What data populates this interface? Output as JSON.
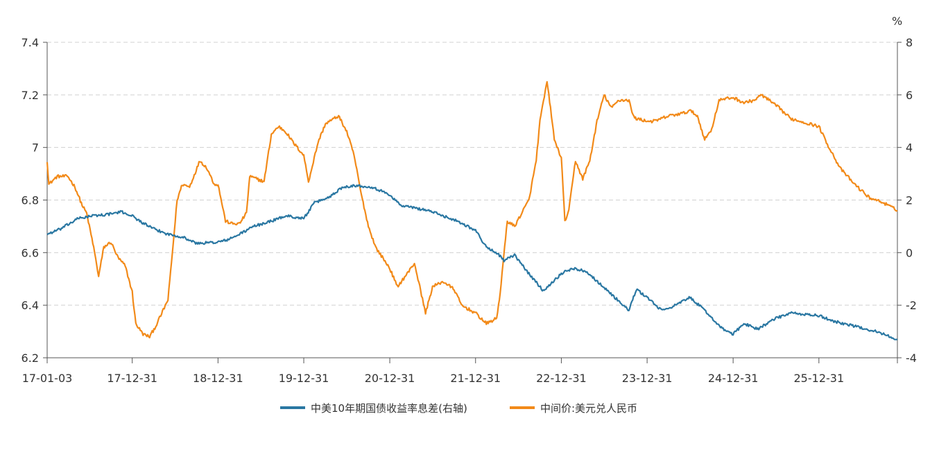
{
  "chart_data": {
    "type": "line",
    "title": "",
    "grid": true,
    "legend_position": "bottom-center",
    "x_axis": {
      "ticks": [
        "17-01-03",
        "17-12-31",
        "18-12-31",
        "19-12-31",
        "20-12-31",
        "21-12-31",
        "22-12-31",
        "23-12-31",
        "24-12-31",
        "25-12-31"
      ],
      "range": [
        "2017-01-03",
        "2026-11-30"
      ]
    },
    "y_left": {
      "ticks": [
        "6.2",
        "6.4",
        "6.6",
        "6.8",
        "7",
        "7.2",
        "7.4"
      ],
      "range": [
        6.2,
        7.4
      ]
    },
    "y_right": {
      "unit": "%",
      "ticks": [
        "-4",
        "-2",
        "0",
        "2",
        "4",
        "6",
        "8"
      ],
      "range": [
        -4,
        8
      ]
    },
    "series": [
      {
        "name": "中美10年期国债收益率息差(右轴)",
        "axis": "right",
        "color": "#2a77a2",
        "points": [
          [
            "2017-01-03",
            0.7
          ],
          [
            "2017-03-01",
            0.9
          ],
          [
            "2017-05-15",
            1.3
          ],
          [
            "2017-07-15",
            1.4
          ],
          [
            "2017-09-15",
            1.45
          ],
          [
            "2017-11-15",
            1.55
          ],
          [
            "2017-12-31",
            1.4
          ],
          [
            "2018-02-01",
            1.2
          ],
          [
            "2018-04-01",
            0.9
          ],
          [
            "2018-06-01",
            0.7
          ],
          [
            "2018-08-01",
            0.6
          ],
          [
            "2018-10-01",
            0.35
          ],
          [
            "2018-12-31",
            0.4
          ],
          [
            "2019-02-15",
            0.5
          ],
          [
            "2019-04-01",
            0.7
          ],
          [
            "2019-06-01",
            1.0
          ],
          [
            "2019-08-15",
            1.2
          ],
          [
            "2019-10-15",
            1.4
          ],
          [
            "2019-12-31",
            1.3
          ],
          [
            "2020-02-15",
            1.9
          ],
          [
            "2020-04-15",
            2.1
          ],
          [
            "2020-06-15",
            2.5
          ],
          [
            "2020-08-01",
            2.55
          ],
          [
            "2020-10-15",
            2.5
          ],
          [
            "2020-12-31",
            2.2
          ],
          [
            "2021-02-15",
            1.8
          ],
          [
            "2021-04-15",
            1.7
          ],
          [
            "2021-06-15",
            1.6
          ],
          [
            "2021-08-15",
            1.4
          ],
          [
            "2021-10-15",
            1.2
          ],
          [
            "2021-12-31",
            0.85
          ],
          [
            "2022-02-15",
            0.2
          ],
          [
            "2022-03-31",
            0.0
          ],
          [
            "2022-05-01",
            -0.3
          ],
          [
            "2022-06-15",
            -0.1
          ],
          [
            "2022-08-15",
            -0.8
          ],
          [
            "2022-10-15",
            -1.45
          ],
          [
            "2022-12-31",
            -0.8
          ],
          [
            "2023-02-15",
            -0.6
          ],
          [
            "2023-04-15",
            -0.7
          ],
          [
            "2023-06-15",
            -1.2
          ],
          [
            "2023-08-15",
            -1.7
          ],
          [
            "2023-10-15",
            -2.2
          ],
          [
            "2023-11-15",
            -1.4
          ],
          [
            "2023-12-31",
            -1.7
          ],
          [
            "2024-03-01",
            -2.2
          ],
          [
            "2024-05-01",
            -2.0
          ],
          [
            "2024-07-01",
            -1.7
          ],
          [
            "2024-09-01",
            -2.2
          ],
          [
            "2024-11-15",
            -2.9
          ],
          [
            "2024-12-31",
            -3.1
          ],
          [
            "2025-02-15",
            -2.7
          ],
          [
            "2025-04-15",
            -2.9
          ],
          [
            "2025-07-01",
            -2.5
          ],
          [
            "2025-09-01",
            -2.3
          ],
          [
            "2025-12-31",
            -2.4
          ],
          [
            "2026-03-01",
            -2.6
          ],
          [
            "2026-06-01",
            -2.8
          ],
          [
            "2026-09-01",
            -3.0
          ],
          [
            "2026-11-30",
            -3.3
          ]
        ]
      },
      {
        "name": "中间价:美元兑人民币",
        "axis": "left",
        "color": "#f28a19",
        "points": [
          [
            "2017-01-03",
            6.95
          ],
          [
            "2017-01-10",
            6.86
          ],
          [
            "2017-02-15",
            6.89
          ],
          [
            "2017-04-01",
            6.89
          ],
          [
            "2017-05-01",
            6.85
          ],
          [
            "2017-06-01",
            6.78
          ],
          [
            "2017-06-20",
            6.75
          ],
          [
            "2017-07-20",
            6.62
          ],
          [
            "2017-08-10",
            6.51
          ],
          [
            "2017-09-01",
            6.62
          ],
          [
            "2017-10-01",
            6.64
          ],
          [
            "2017-11-01",
            6.58
          ],
          [
            "2017-12-01",
            6.55
          ],
          [
            "2017-12-31",
            6.45
          ],
          [
            "2018-01-15",
            6.33
          ],
          [
            "2018-02-15",
            6.29
          ],
          [
            "2018-03-15",
            6.28
          ],
          [
            "2018-04-10",
            6.32
          ],
          [
            "2018-05-01",
            6.36
          ],
          [
            "2018-06-01",
            6.42
          ],
          [
            "2018-06-20",
            6.6
          ],
          [
            "2018-07-10",
            6.8
          ],
          [
            "2018-08-01",
            6.86
          ],
          [
            "2018-09-01",
            6.85
          ],
          [
            "2018-10-15",
            6.95
          ],
          [
            "2018-11-15",
            6.92
          ],
          [
            "2018-12-15",
            6.86
          ],
          [
            "2018-12-31",
            6.86
          ],
          [
            "2019-02-01",
            6.72
          ],
          [
            "2019-03-01",
            6.71
          ],
          [
            "2019-04-01",
            6.71
          ],
          [
            "2019-05-01",
            6.75
          ],
          [
            "2019-05-15",
            6.89
          ],
          [
            "2019-06-15",
            6.88
          ],
          [
            "2019-07-15",
            6.87
          ],
          [
            "2019-08-15",
            7.05
          ],
          [
            "2019-09-15",
            7.08
          ],
          [
            "2019-10-15",
            7.06
          ],
          [
            "2019-11-15",
            7.02
          ],
          [
            "2019-12-31",
            6.97
          ],
          [
            "2020-01-20",
            6.87
          ],
          [
            "2020-03-01",
            7.02
          ],
          [
            "2020-04-01",
            7.09
          ],
          [
            "2020-05-27",
            7.12
          ],
          [
            "2020-07-01",
            7.06
          ],
          [
            "2020-08-01",
            6.97
          ],
          [
            "2020-09-01",
            6.82
          ],
          [
            "2020-10-01",
            6.7
          ],
          [
            "2020-11-01",
            6.62
          ],
          [
            "2020-12-31",
            6.54
          ],
          [
            "2021-02-01",
            6.47
          ],
          [
            "2021-03-15",
            6.52
          ],
          [
            "2021-04-15",
            6.56
          ],
          [
            "2021-05-15",
            6.44
          ],
          [
            "2021-06-01",
            6.37
          ],
          [
            "2021-07-01",
            6.47
          ],
          [
            "2021-08-15",
            6.49
          ],
          [
            "2021-10-01",
            6.46
          ],
          [
            "2021-11-01",
            6.4
          ],
          [
            "2021-12-31",
            6.37
          ],
          [
            "2022-02-15",
            6.33
          ],
          [
            "2022-03-31",
            6.35
          ],
          [
            "2022-04-15",
            6.45
          ],
          [
            "2022-05-15",
            6.72
          ],
          [
            "2022-06-15",
            6.7
          ],
          [
            "2022-07-15",
            6.75
          ],
          [
            "2022-08-15",
            6.8
          ],
          [
            "2022-09-15",
            6.95
          ],
          [
            "2022-10-01",
            7.1
          ],
          [
            "2022-10-31",
            7.25
          ],
          [
            "2022-11-15",
            7.15
          ],
          [
            "2022-12-01",
            7.03
          ],
          [
            "2022-12-31",
            6.96
          ],
          [
            "2023-01-15",
            6.72
          ],
          [
            "2023-02-01",
            6.76
          ],
          [
            "2023-03-01",
            6.95
          ],
          [
            "2023-04-01",
            6.88
          ],
          [
            "2023-05-01",
            6.95
          ],
          [
            "2023-06-01",
            7.1
          ],
          [
            "2023-07-01",
            7.2
          ],
          [
            "2023-08-01",
            7.15
          ],
          [
            "2023-09-01",
            7.18
          ],
          [
            "2023-10-15",
            7.18
          ],
          [
            "2023-11-01",
            7.12
          ],
          [
            "2023-11-15",
            7.11
          ],
          [
            "2023-12-31",
            7.1
          ],
          [
            "2024-02-01",
            7.1
          ],
          [
            "2024-04-01",
            7.12
          ],
          [
            "2024-06-01",
            7.13
          ],
          [
            "2024-07-01",
            7.14
          ],
          [
            "2024-08-01",
            7.12
          ],
          [
            "2024-09-01",
            7.03
          ],
          [
            "2024-10-01",
            7.07
          ],
          [
            "2024-11-01",
            7.18
          ],
          [
            "2024-12-31",
            7.19
          ],
          [
            "2025-02-15",
            7.17
          ],
          [
            "2025-04-01",
            7.18
          ],
          [
            "2025-05-01",
            7.2
          ],
          [
            "2025-06-01",
            7.18
          ],
          [
            "2025-07-15",
            7.15
          ],
          [
            "2025-09-01",
            7.11
          ],
          [
            "2025-12-31",
            7.08
          ],
          [
            "2026-02-01",
            7.02
          ],
          [
            "2026-04-01",
            6.92
          ],
          [
            "2026-06-01",
            6.86
          ],
          [
            "2026-08-01",
            6.81
          ],
          [
            "2026-10-01",
            6.79
          ],
          [
            "2026-11-30",
            6.76
          ]
        ]
      }
    ]
  }
}
